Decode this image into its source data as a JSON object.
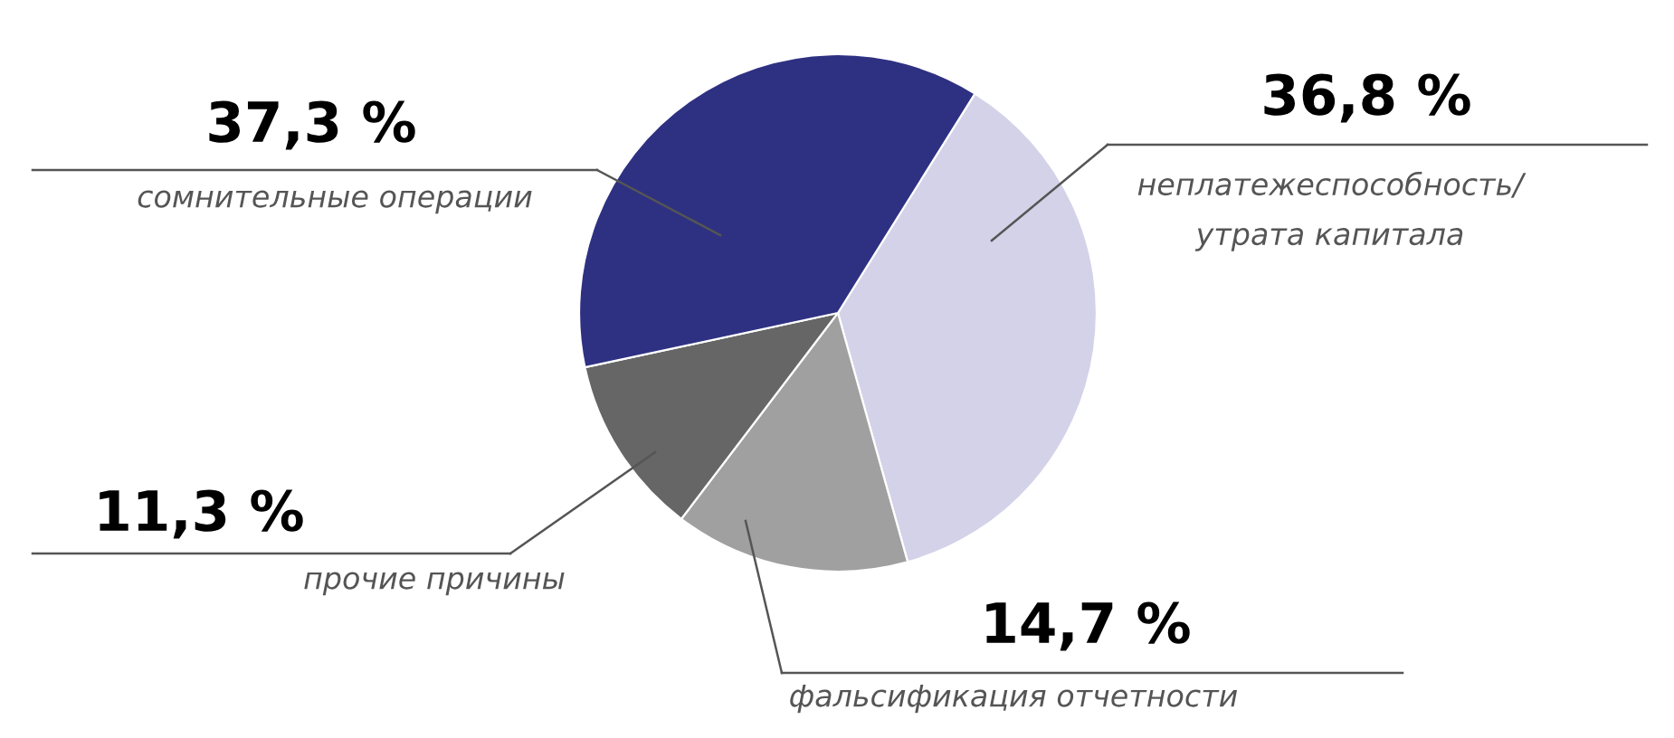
{
  "chart_data": {
    "type": "pie",
    "categories": [
      "неплатежеспособность/\nутрата капитала",
      "фальсификация отчетности",
      "прочие причины",
      "сомнительные операции"
    ],
    "values": [
      36.8,
      14.7,
      11.3,
      37.3
    ],
    "value_labels": [
      "36,8 %",
      "14,7 %",
      "11,3 %",
      "37,3 %"
    ],
    "colors": [
      "#d3d2e8",
      "#a0a0a0",
      "#666666",
      "#2e3182"
    ],
    "legend": false
  }
}
